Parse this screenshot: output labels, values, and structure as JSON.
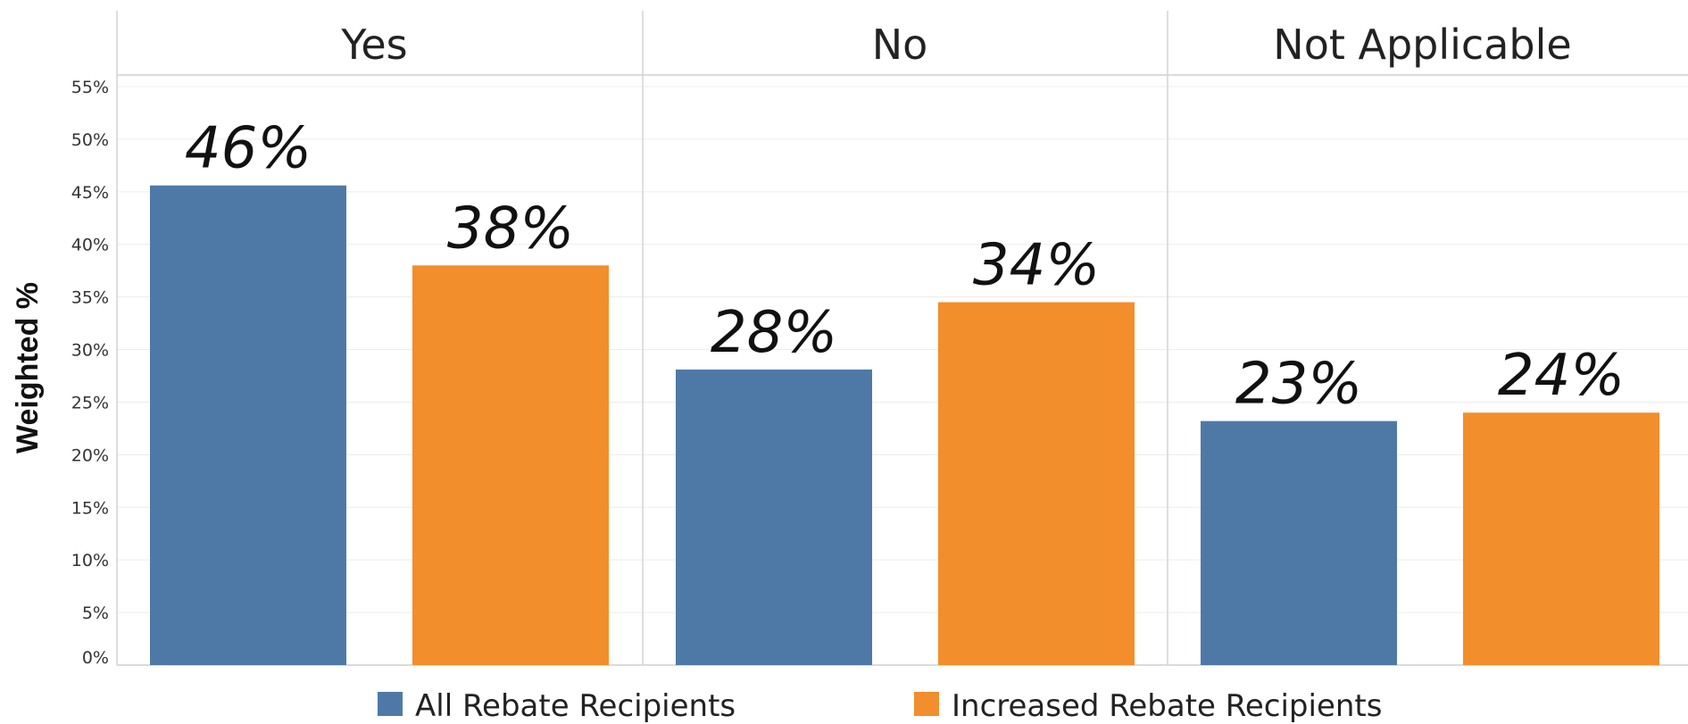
{
  "chart_data": {
    "type": "bar",
    "ylabel": "Weighted %",
    "ylim": [
      0,
      55
    ],
    "y_ticks": [
      "0%",
      "5%",
      "10%",
      "15%",
      "20%",
      "25%",
      "30%",
      "35%",
      "40%",
      "45%",
      "50%",
      "55%"
    ],
    "panels": [
      "Yes",
      "No",
      "Not Applicable"
    ],
    "series": [
      {
        "name": "All Rebate Recipients",
        "color": "#4e79a7",
        "values": [
          45.6,
          28.1,
          23.2
        ],
        "labels": [
          "46%",
          "28%",
          "23%"
        ]
      },
      {
        "name": "Increased Rebate Recipients",
        "color": "#f28e2b",
        "values": [
          38.0,
          34.5,
          24.0
        ],
        "labels": [
          "38%",
          "34%",
          "24%"
        ]
      }
    ],
    "legend_position": "bottom",
    "grid": true
  }
}
